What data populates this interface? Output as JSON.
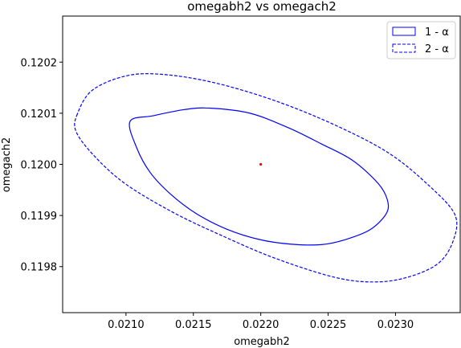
{
  "chart_data": {
    "type": "contour",
    "title": "omegabh2 vs omegach2",
    "xlabel": "omegabh2",
    "ylabel": "omegach2",
    "xlim": [
      0.02053,
      0.02348
    ],
    "ylim": [
      0.11971,
      0.12029
    ],
    "x_ticks": [
      0.021,
      0.0215,
      0.022,
      0.0225,
      0.023
    ],
    "x_tick_labels": [
      "0.0210",
      "0.0215",
      "0.0220",
      "0.0225",
      "0.0230"
    ],
    "y_ticks": [
      0.1198,
      0.1199,
      0.12,
      0.1201,
      0.1202
    ],
    "y_tick_labels": [
      "0.1198",
      "0.1199",
      "0.1200",
      "0.1201",
      "0.1202"
    ],
    "grid": false,
    "legend_position": "upper-right",
    "center": {
      "x": 0.022,
      "y": 0.12,
      "color": "#ff0000"
    },
    "series": [
      {
        "name": "1 - α",
        "style": "solid",
        "color": "#0000ff",
        "points": [
          [
            0.02103,
            0.120084
          ],
          [
            0.02108,
            0.120032
          ],
          [
            0.02118,
            0.119984
          ],
          [
            0.02133,
            0.119942
          ],
          [
            0.02152,
            0.119904
          ],
          [
            0.02175,
            0.119873
          ],
          [
            0.02199,
            0.119853
          ],
          [
            0.02222,
            0.119844
          ],
          [
            0.02245,
            0.119843
          ],
          [
            0.02263,
            0.119853
          ],
          [
            0.02281,
            0.119872
          ],
          [
            0.02293,
            0.119903
          ],
          [
            0.02294,
            0.11993
          ],
          [
            0.02287,
            0.119963
          ],
          [
            0.02268,
            0.120008
          ],
          [
            0.02245,
            0.12004
          ],
          [
            0.02221,
            0.120071
          ],
          [
            0.02192,
            0.1201
          ],
          [
            0.02162,
            0.12011
          ],
          [
            0.02143,
            0.120107
          ],
          [
            0.0212,
            0.120095
          ],
          [
            0.02103,
            0.120084
          ]
        ]
      },
      {
        "name": "2 - α",
        "style": "dashed",
        "color": "#0000ff",
        "points": [
          [
            0.02064,
            0.120099
          ],
          [
            0.02063,
            0.120064
          ],
          [
            0.02077,
            0.120015
          ],
          [
            0.021,
            0.119961
          ],
          [
            0.02135,
            0.119906
          ],
          [
            0.0217,
            0.119862
          ],
          [
            0.0221,
            0.119817
          ],
          [
            0.02255,
            0.119779
          ],
          [
            0.02285,
            0.11977
          ],
          [
            0.0231,
            0.11978
          ],
          [
            0.02332,
            0.119807
          ],
          [
            0.02343,
            0.119852
          ],
          [
            0.02344,
            0.119902
          ],
          [
            0.02325,
            0.119958
          ],
          [
            0.02295,
            0.120022
          ],
          [
            0.02255,
            0.120077
          ],
          [
            0.0221,
            0.120125
          ],
          [
            0.02165,
            0.12016
          ],
          [
            0.02127,
            0.120176
          ],
          [
            0.021,
            0.120173
          ],
          [
            0.02075,
            0.120145
          ],
          [
            0.02064,
            0.120099
          ]
        ]
      }
    ]
  }
}
